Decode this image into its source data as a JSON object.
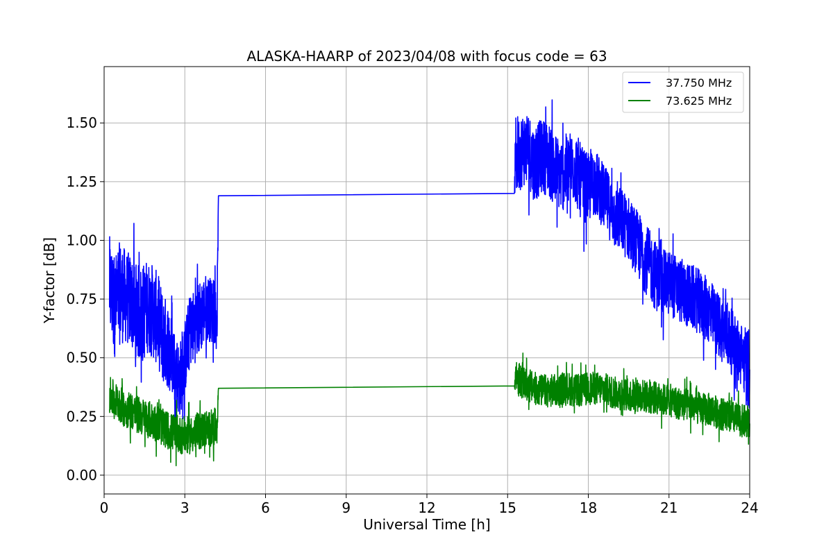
{
  "chart_data": {
    "type": "line",
    "title": "ALASKA-HAARP of 2023/04/08 with focus code = 63",
    "xlabel": "Universal Time [h]",
    "ylabel": "Y-factor [dB]",
    "xlim": [
      0,
      24
    ],
    "ylim": [
      -0.08,
      1.74
    ],
    "xticks": [
      0,
      3,
      6,
      9,
      12,
      15,
      18,
      21,
      24
    ],
    "xtick_labels": [
      "0",
      "3",
      "6",
      "9",
      "12",
      "15",
      "18",
      "21",
      "24"
    ],
    "yticks": [
      0.0,
      0.25,
      0.5,
      0.75,
      1.0,
      1.25,
      1.5
    ],
    "ytick_labels": [
      "0.00",
      "0.25",
      "0.50",
      "0.75",
      "1.00",
      "1.25",
      "1.50"
    ],
    "grid": true,
    "legend_position": "top-right",
    "series": [
      {
        "name": "37.750 MHz",
        "color": "#0000ff",
        "x": [
          0.2,
          0.4,
          0.6,
          0.8,
          1.0,
          1.2,
          1.4,
          1.6,
          1.8,
          2.0,
          2.2,
          2.4,
          2.6,
          2.8,
          3.0,
          3.2,
          3.4,
          3.6,
          3.8,
          4.0,
          4.2,
          4.25,
          15.25,
          15.3,
          15.5,
          15.75,
          16.0,
          16.25,
          16.5,
          16.75,
          17.0,
          17.25,
          17.5,
          17.75,
          18.0,
          18.25,
          18.5,
          18.75,
          19.0,
          19.25,
          19.5,
          19.75,
          20.0,
          20.25,
          20.5,
          20.75,
          21.0,
          21.25,
          21.5,
          21.75,
          22.0,
          22.25,
          22.5,
          22.75,
          23.0,
          23.25,
          23.5,
          23.75,
          24.0
        ],
        "values": [
          0.8,
          0.72,
          0.78,
          0.76,
          0.74,
          0.7,
          0.68,
          0.72,
          0.7,
          0.66,
          0.58,
          0.55,
          0.48,
          0.4,
          0.5,
          0.62,
          0.64,
          0.68,
          0.72,
          0.7,
          0.68,
          1.19,
          1.2,
          1.36,
          1.38,
          1.4,
          1.32,
          1.36,
          1.35,
          1.3,
          1.28,
          1.3,
          1.32,
          1.24,
          1.22,
          1.25,
          1.2,
          1.15,
          1.1,
          1.08,
          1.05,
          1.0,
          0.95,
          0.9,
          0.85,
          0.82,
          0.82,
          0.8,
          0.78,
          0.76,
          0.75,
          0.72,
          0.7,
          0.65,
          0.62,
          0.58,
          0.54,
          0.5,
          0.45
        ],
        "noise_amplitude": [
          0.22,
          0.22,
          0.22,
          0.2,
          0.2,
          0.2,
          0.22,
          0.2,
          0.2,
          0.2,
          0.2,
          0.18,
          0.16,
          0.16,
          0.16,
          0.16,
          0.16,
          0.16,
          0.14,
          0.14,
          0.12,
          0,
          0,
          0.18,
          0.16,
          0.16,
          0.16,
          0.16,
          0.16,
          0.16,
          0.16,
          0.16,
          0.16,
          0.16,
          0.15,
          0.14,
          0.14,
          0.14,
          0.14,
          0.14,
          0.14,
          0.14,
          0.15,
          0.15,
          0.15,
          0.14,
          0.14,
          0.14,
          0.14,
          0.14,
          0.14,
          0.14,
          0.14,
          0.14,
          0.14,
          0.14,
          0.14,
          0.14,
          0.18
        ]
      },
      {
        "name": "73.625 MHz",
        "color": "#008000",
        "x": [
          0.2,
          0.4,
          0.6,
          0.8,
          1.0,
          1.2,
          1.4,
          1.6,
          1.8,
          2.0,
          2.2,
          2.4,
          2.6,
          2.8,
          3.0,
          3.2,
          3.4,
          3.6,
          3.8,
          4.0,
          4.2,
          4.25,
          15.25,
          15.3,
          15.5,
          15.75,
          16.0,
          16.25,
          16.5,
          16.75,
          17.0,
          17.25,
          17.5,
          17.75,
          18.0,
          18.25,
          18.5,
          18.75,
          19.0,
          19.25,
          19.5,
          19.75,
          20.0,
          20.25,
          20.5,
          20.75,
          21.0,
          21.25,
          21.5,
          21.75,
          22.0,
          22.25,
          22.5,
          22.75,
          23.0,
          23.25,
          23.5,
          23.75,
          24.0
        ],
        "values": [
          0.34,
          0.32,
          0.3,
          0.28,
          0.28,
          0.26,
          0.25,
          0.24,
          0.23,
          0.22,
          0.2,
          0.19,
          0.18,
          0.17,
          0.17,
          0.17,
          0.18,
          0.19,
          0.2,
          0.2,
          0.21,
          0.37,
          0.38,
          0.42,
          0.4,
          0.38,
          0.37,
          0.36,
          0.36,
          0.36,
          0.37,
          0.37,
          0.36,
          0.36,
          0.37,
          0.37,
          0.37,
          0.36,
          0.35,
          0.35,
          0.34,
          0.34,
          0.34,
          0.33,
          0.33,
          0.32,
          0.32,
          0.31,
          0.3,
          0.3,
          0.29,
          0.28,
          0.28,
          0.27,
          0.26,
          0.25,
          0.24,
          0.23,
          0.22
        ],
        "noise_amplitude": [
          0.08,
          0.08,
          0.08,
          0.08,
          0.08,
          0.08,
          0.08,
          0.08,
          0.08,
          0.08,
          0.08,
          0.08,
          0.08,
          0.08,
          0.08,
          0.08,
          0.08,
          0.08,
          0.08,
          0.08,
          0.08,
          0,
          0,
          0.08,
          0.07,
          0.07,
          0.07,
          0.07,
          0.07,
          0.07,
          0.07,
          0.07,
          0.07,
          0.07,
          0.07,
          0.07,
          0.07,
          0.07,
          0.07,
          0.07,
          0.07,
          0.07,
          0.07,
          0.07,
          0.07,
          0.07,
          0.07,
          0.07,
          0.07,
          0.07,
          0.07,
          0.07,
          0.07,
          0.07,
          0.07,
          0.07,
          0.07,
          0.07,
          0.08
        ]
      }
    ]
  }
}
